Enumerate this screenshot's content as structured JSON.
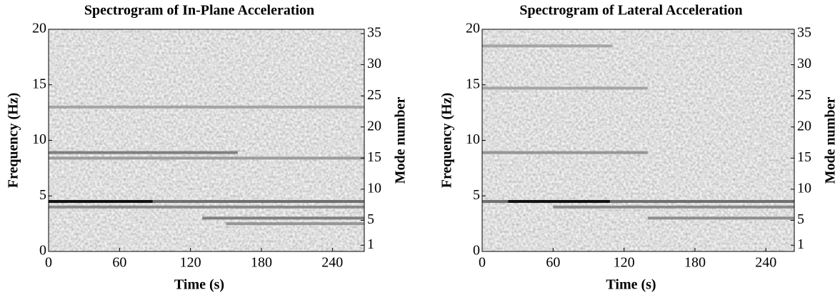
{
  "chart_data": [
    {
      "type": "spectrogram",
      "title": "Spectrogram of In-Plane Acceleration",
      "xlabel": "Time (s)",
      "ylabel": "Frequency (Hz)",
      "y2label": "Mode number",
      "xlim": [
        0,
        267
      ],
      "xticks": [
        0,
        60,
        120,
        180,
        240
      ],
      "ylim": [
        0,
        20
      ],
      "yticks": [
        0,
        5,
        10,
        15,
        20
      ],
      "y2lim": [
        0,
        35.7
      ],
      "y2ticks": [
        1,
        5,
        10,
        15,
        20,
        25,
        30,
        35
      ],
      "bands": [
        {
          "freq": 4.5,
          "start": 0,
          "end": 267,
          "color": "#5a5a5a"
        },
        {
          "freq": 4.0,
          "start": 0,
          "end": 267,
          "color": "#7a7a7a"
        },
        {
          "freq": 4.5,
          "start": 0,
          "end": 88,
          "color": "#000000"
        },
        {
          "freq": 3.0,
          "start": 130,
          "end": 267,
          "color": "#6e6e6e"
        },
        {
          "freq": 2.5,
          "start": 150,
          "end": 267,
          "color": "#8a8a8a"
        },
        {
          "freq": 8.9,
          "start": 0,
          "end": 160,
          "color": "#6e6e6e"
        },
        {
          "freq": 8.4,
          "start": 0,
          "end": 267,
          "color": "#909090"
        },
        {
          "freq": 13.0,
          "start": 0,
          "end": 267,
          "color": "#9a9a9a"
        }
      ]
    },
    {
      "type": "spectrogram",
      "title": "Spectrogram of Lateral Acceleration",
      "xlabel": "Time (s)",
      "ylabel": "Frequency (Hz)",
      "y2label": "Mode number",
      "xlim": [
        0,
        264
      ],
      "xticks": [
        0,
        60,
        120,
        180,
        240
      ],
      "ylim": [
        0,
        20
      ],
      "yticks": [
        0,
        5,
        10,
        15,
        20
      ],
      "y2lim": [
        0,
        35.7
      ],
      "y2ticks": [
        1,
        5,
        10,
        15,
        20,
        25,
        30,
        35
      ],
      "bands": [
        {
          "freq": 4.5,
          "start": 0,
          "end": 264,
          "color": "#5a5a5a"
        },
        {
          "freq": 4.0,
          "start": 60,
          "end": 264,
          "color": "#7a7a7a"
        },
        {
          "freq": 4.5,
          "start": 22,
          "end": 108,
          "color": "#000000"
        },
        {
          "freq": 3.0,
          "start": 140,
          "end": 264,
          "color": "#808080"
        },
        {
          "freq": 8.9,
          "start": 0,
          "end": 140,
          "color": "#8a8a8a"
        },
        {
          "freq": 14.7,
          "start": 0,
          "end": 140,
          "color": "#9a9a9a"
        },
        {
          "freq": 18.5,
          "start": 0,
          "end": 110,
          "color": "#9a9a9a"
        }
      ]
    }
  ]
}
